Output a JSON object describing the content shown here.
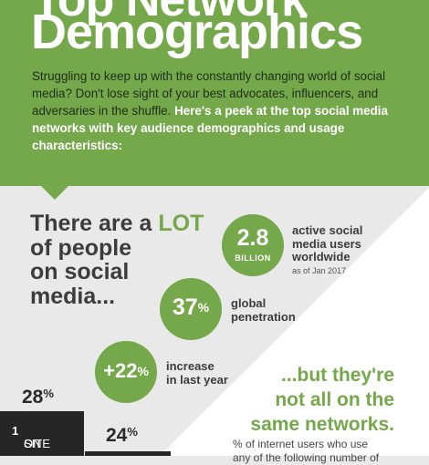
{
  "hero": {
    "title_top": "Top Network",
    "title": "Demographics",
    "intro_plain": "Struggling to keep up with the constantly changing world of social media? Don't lose sight of your best advocates, influencers, and adversaries in the shuffle. ",
    "intro_emph": "Here's a peek at the top social media networks with key audience demographics and usage characteristics:"
  },
  "headline": {
    "line1_a": "There are a ",
    "line1_b": "LOT",
    "line2": "of people",
    "line3": "on social",
    "line4": "media..."
  },
  "stats": [
    {
      "value": "2.8",
      "unit": "BILLION",
      "label_l1": "active social",
      "label_l2": "media users",
      "label_l3": "worldwide",
      "note": "as of Jan 2017"
    },
    {
      "value": "37",
      "unit": "%",
      "label_l1": "global",
      "label_l2": "penetration"
    },
    {
      "value": "+22",
      "unit": "%",
      "label_l1": "increase",
      "label_l2": "in last year"
    }
  ],
  "networks": {
    "line1": "...but they're",
    "line2": "not all on the",
    "line3": "same networks.",
    "note_l1": "% of internet users who use",
    "note_l2": "any of the following number of"
  },
  "usage": [
    {
      "value": "28",
      "unit": "%"
    },
    {
      "value": "24",
      "unit": "%"
    }
  ],
  "site_bar": {
    "pre": "ON ",
    "num": "1",
    "post": " SITE"
  },
  "colors": {
    "accent": "#74a84a",
    "dark": "#262626",
    "text": "#3c3c3c",
    "background": "#e9e9ea"
  }
}
